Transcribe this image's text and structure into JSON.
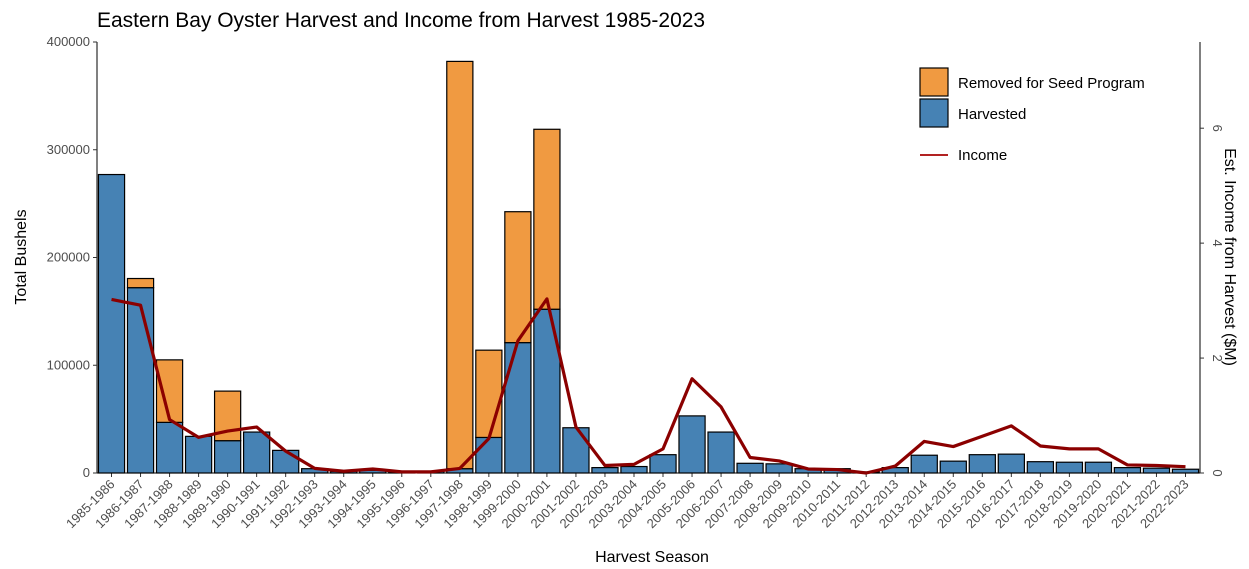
{
  "chart_data": {
    "type": "bar",
    "stacked": true,
    "title": "Eastern Bay Oyster Harvest and Income from Harvest 1985-2023",
    "xlabel": "Harvest Season",
    "ylabel": "Total Bushels",
    "y2label": "Est. Income from Harvest ($M)",
    "ylim": [
      0,
      400000
    ],
    "y2lim": [
      0,
      7.5
    ],
    "yticks": [
      "0",
      "100000",
      "200000",
      "300000",
      "400000"
    ],
    "y2ticks": [
      "0",
      "2",
      "4",
      "6"
    ],
    "legend_position": "top-right",
    "categories": [
      "1985-1986",
      "1986-1987",
      "1987-1988",
      "1988-1989",
      "1989-1990",
      "1990-1991",
      "1991-1992",
      "1992-1993",
      "1993-1994",
      "1994-1995",
      "1995-1996",
      "1996-1997",
      "1997-1998",
      "1998-1999",
      "1999-2000",
      "2000-2001",
      "2001-2002",
      "2002-2003",
      "2003-2004",
      "2004-2005",
      "2005-2006",
      "2006-2007",
      "2007-2008",
      "2008-2009",
      "2009-2010",
      "2010-2011",
      "2011-2012",
      "2012-2013",
      "2013-2014",
      "2014-2015",
      "2015-2016",
      "2016-2017",
      "2017-2018",
      "2018-2019",
      "2019-2020",
      "2020-2021",
      "2021-2022",
      "2022-2023"
    ],
    "series": [
      {
        "name": "Harvested",
        "color": "#4682b4",
        "values": [
          277000,
          172000,
          47000,
          34000,
          30000,
          38000,
          21000,
          4000,
          1500,
          2500,
          1000,
          1500,
          4000,
          33000,
          121000,
          152000,
          42000,
          5000,
          6000,
          17000,
          53000,
          38000,
          9000,
          8500,
          4000,
          4000,
          1000,
          5000,
          16500,
          11000,
          17000,
          17500,
          10500,
          10000,
          10000,
          5000,
          4500,
          3500
        ]
      },
      {
        "name": "Removed for Seed Program",
        "color": "#f09a41",
        "values": [
          0,
          8500,
          58000,
          0,
          46000,
          0,
          0,
          0,
          0,
          0,
          0,
          0,
          378000,
          81000,
          121500,
          167000,
          0,
          0,
          0,
          0,
          0,
          0,
          0,
          0,
          0,
          0,
          0,
          0,
          0,
          0,
          0,
          0,
          0,
          0,
          0,
          0,
          0,
          0
        ]
      }
    ],
    "line_series": {
      "name": "Income",
      "color": "#8b0000",
      "axis": "y2",
      "values": [
        3.02,
        2.92,
        0.93,
        0.62,
        0.73,
        0.8,
        0.38,
        0.08,
        0.03,
        0.07,
        0.02,
        0.02,
        0.08,
        0.6,
        2.3,
        3.03,
        0.8,
        0.13,
        0.15,
        0.42,
        1.64,
        1.15,
        0.27,
        0.21,
        0.07,
        0.06,
        0.0,
        0.12,
        0.55,
        0.46,
        0.64,
        0.82,
        0.47,
        0.42,
        0.42,
        0.14,
        0.13,
        0.11
      ]
    }
  }
}
